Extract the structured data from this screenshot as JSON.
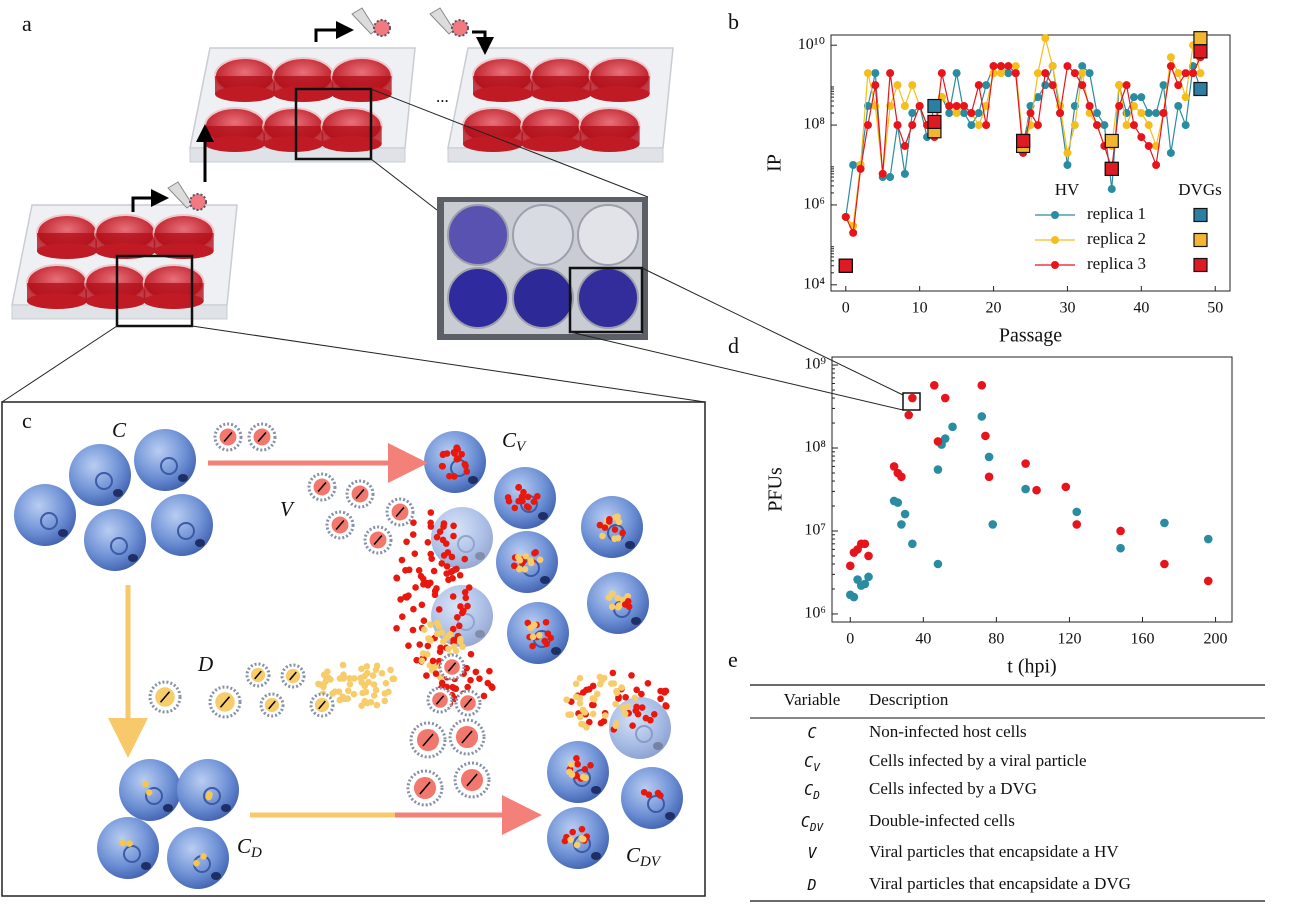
{
  "panels": [
    "a",
    "b",
    "c",
    "d",
    "e"
  ],
  "illustration": {
    "ellipsis": "..."
  },
  "diagram": {
    "labels": [
      {
        "main": "C"
      },
      {
        "main": "V"
      },
      {
        "main": "C",
        "sub": "V"
      },
      {
        "main": "D"
      },
      {
        "main": "C",
        "sub": "D"
      },
      {
        "main": "C",
        "sub": "DV"
      }
    ]
  },
  "chart_data": [
    {
      "type": "line",
      "x_label": "Passage",
      "y_label": "IP",
      "log_y": true,
      "xlim": [
        -2,
        52
      ],
      "ylim": [
        7000,
        18000000000
      ],
      "xticks": [
        0,
        10,
        20,
        30,
        40,
        50
      ],
      "yticks": [
        {
          "value": 10000,
          "label": "10⁴"
        },
        {
          "value": 1000000,
          "label": "10⁶"
        },
        {
          "value": 100000000,
          "label": "10⁸"
        },
        {
          "value": 10000000000,
          "label": "10¹⁰"
        }
      ],
      "legend_headers": [
        "HV",
        "DVGs"
      ],
      "legend": "lower right",
      "x": [
        0,
        1,
        2,
        3,
        4,
        5,
        6,
        7,
        8,
        9,
        10,
        11,
        12,
        13,
        14,
        15,
        16,
        17,
        18,
        19,
        20,
        21,
        22,
        23,
        24,
        25,
        26,
        27,
        28,
        29,
        30,
        31,
        32,
        33,
        34,
        35,
        36,
        37,
        38,
        39,
        40,
        41,
        42,
        43,
        44,
        45,
        46,
        47,
        48
      ],
      "dvg_x": [
        0,
        12,
        24,
        36,
        48
      ],
      "series": [
        {
          "name": "replica 1",
          "color": "#2a8ca0",
          "dvg_color": "#2b7fa3",
          "values": [
            500000.0,
            10000000.0,
            10000000.0,
            300000000.0,
            2000000000.0,
            5000000.0,
            5000000.0,
            100000000.0,
            6000000.0,
            200000000.0,
            300000000.0,
            50000000.0,
            300000000.0,
            500000000.0,
            200000000.0,
            2000000000.0,
            200000000.0,
            100000000.0,
            200000000.0,
            1000000000.0,
            3000000000.0,
            3000000000.0,
            2000000000.0,
            2000000000.0,
            30000000.0,
            300000000.0,
            500000000.0,
            1000000000.0,
            3000000000.0,
            200000000.0,
            10000000.0,
            300000000.0,
            3000000000.0,
            2000000000.0,
            200000000.0,
            100000000.0,
            2500000.0,
            1000000000.0,
            200000000.0,
            500000000.0,
            500000000.0,
            200000000.0,
            200000000.0,
            1000000000.0,
            20000000.0,
            300000000.0,
            100000000.0,
            3000000000.0,
            800000000.0
          ],
          "dvg_values": [
            30000.0,
            300000000.0,
            40000000.0,
            8000000.0,
            800000000.0
          ]
        },
        {
          "name": "replica 2",
          "color": "#f5be1c",
          "dvg_color": "#f2b632",
          "values": [
            500000.0,
            300000.0,
            10000000.0,
            2000000000.0,
            300000000.0,
            6000000.0,
            300000000.0,
            1000000000.0,
            300000000.0,
            1000000000.0,
            300000000.0,
            100000000.0,
            70000000.0,
            500000000.0,
            300000000.0,
            200000000.0,
            300000000.0,
            200000000.0,
            100000000.0,
            300000000.0,
            2000000000.0,
            2000000000.0,
            3000000000.0,
            3000000000.0,
            30000000.0,
            100000000.0,
            2000000000.0,
            15000000000.0,
            3000000000.0,
            300000000.0,
            20000000.0,
            100000000.0,
            2000000000.0,
            200000000.0,
            100000000.0,
            30000000.0,
            30000000.0,
            1000000000.0,
            100000000.0,
            300000000.0,
            200000000.0,
            100000000.0,
            30000000.0,
            200000000.0,
            5000000000.0,
            2000000000.0,
            500000000.0,
            10000000000.0,
            2000000000.0
          ],
          "dvg_values": [
            30000.0,
            70000000.0,
            30000000.0,
            40000000.0,
            15000000000.0
          ]
        },
        {
          "name": "replica 3",
          "color": "#e8141c",
          "dvg_color": "#de1a24",
          "values": [
            500000.0,
            200000.0,
            8000000.0,
            100000000.0,
            1000000000.0,
            6000000.0,
            2000000000.0,
            100000000.0,
            30000000.0,
            100000000.0,
            300000000.0,
            100000000.0,
            50000000.0,
            2000000000.0,
            300000000.0,
            300000000.0,
            300000000.0,
            200000000.0,
            1000000000.0,
            100000000.0,
            3000000000.0,
            3000000000.0,
            3000000000.0,
            2000000000.0,
            20000000.0,
            200000000.0,
            100000000.0,
            2000000000.0,
            1000000000.0,
            200000000.0,
            3000000000.0,
            2000000000.0,
            1000000000.0,
            300000000.0,
            100000000.0,
            30000000.0,
            8000000.0,
            300000000.0,
            1000000000.0,
            100000000.0,
            50000000.0,
            30000000.0,
            10000000.0,
            200000000.0,
            3000000000.0,
            1000000000.0,
            2000000000.0,
            2000000000.0,
            5000000000.0
          ],
          "dvg_values": [
            30000.0,
            120000000.0,
            40000000.0,
            8000000.0,
            7000000000.0
          ]
        }
      ]
    },
    {
      "type": "scatter",
      "x_label": "t (hpi)",
      "y_label": "PFUs",
      "log_y": true,
      "xlim": [
        -10,
        209
      ],
      "ylim": [
        800000,
        1250000000
      ],
      "xticks": [
        0,
        40,
        80,
        120,
        160,
        200
      ],
      "yticks": [
        {
          "value": 1000000,
          "label": "10⁶"
        },
        {
          "value": 10000000,
          "label": "10⁷"
        },
        {
          "value": 100000000,
          "label": "10⁸"
        },
        {
          "value": 1000000000,
          "label": "10⁹"
        }
      ],
      "series": [
        {
          "color": "#2a8ca0",
          "x": [
            0,
            2,
            4,
            6,
            8,
            10,
            24,
            26,
            28,
            30,
            34,
            48,
            48,
            50,
            52,
            56,
            72,
            76,
            78,
            96,
            124,
            148,
            172,
            196
          ],
          "values": [
            1700000.0,
            1600000.0,
            2600000.0,
            2200000.0,
            2300000.0,
            2800000.0,
            23000000.0,
            22000000.0,
            12000000.0,
            16000000.0,
            7000000.0,
            4000000.0,
            55000000.0,
            110000000.0,
            130000000.0,
            180000000.0,
            240000000.0,
            78000000.0,
            12000000.0,
            32000000.0,
            17000000.0,
            6200000.0,
            12500000.0,
            8000000.0
          ]
        },
        {
          "color": "#e8141c",
          "x": [
            0,
            2,
            4,
            6,
            8,
            10,
            24,
            26,
            28,
            32,
            34,
            46,
            48,
            52,
            72,
            74,
            76,
            96,
            102,
            118,
            124,
            148,
            172,
            196
          ],
          "values": [
            3800000.0,
            5500000.0,
            6000000.0,
            7000000.0,
            7000000.0,
            5000000.0,
            60000000.0,
            50000000.0,
            45000000.0,
            250000000.0,
            400000000.0,
            570000000.0,
            120000000.0,
            400000000.0,
            570000000.0,
            140000000.0,
            45000000.0,
            65000000.0,
            31000000.0,
            34000000.0,
            12000000.0,
            10000000.0,
            4000000.0,
            2500000.0
          ]
        }
      ]
    }
  ],
  "table": {
    "header": [
      "Variable",
      "Description"
    ],
    "rows": [
      [
        {
          "main": "C"
        },
        "Non-infected host cells"
      ],
      [
        {
          "main": "C",
          "sub": "V"
        },
        "Cells infected by a viral particle"
      ],
      [
        {
          "main": "C",
          "sub": "D"
        },
        "Cells infected by a DVG"
      ],
      [
        {
          "main": "C",
          "sub": "DV"
        },
        "Double-infected cells"
      ],
      [
        {
          "main": "V"
        },
        "Viral particles that encapsidate  a HV"
      ],
      [
        {
          "main": "D"
        },
        "Viral particles that encapsidate a DVG"
      ]
    ]
  }
}
